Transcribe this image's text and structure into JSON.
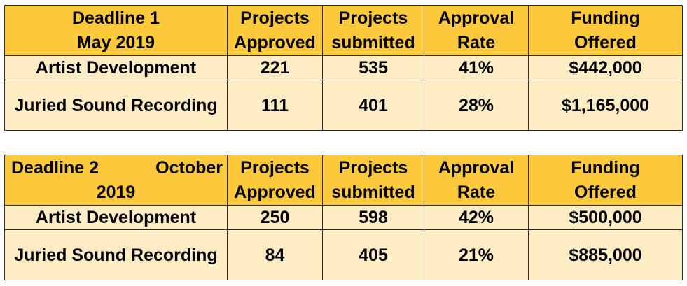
{
  "tables": [
    {
      "deadline": {
        "line1": "Deadline 1",
        "line2": "May 2019"
      },
      "columns": {
        "approved": {
          "line1": "Projects",
          "line2": "Approved"
        },
        "submitted": {
          "line1": "Projects",
          "line2": "submitted"
        },
        "rate": {
          "line1": "Approval",
          "line2": "Rate"
        },
        "funding": {
          "line1": "Funding",
          "line2": "Offered"
        }
      },
      "rows": [
        {
          "program": "Artist Development",
          "approved": "221",
          "submitted": "535",
          "rate": "41%",
          "funding": "$442,000"
        },
        {
          "program": "Juried Sound Recording",
          "approved": "111",
          "submitted": "401",
          "rate": "28%",
          "funding": "$1,165,000"
        }
      ]
    },
    {
      "deadline": {
        "part1": "Deadline 2",
        "part2": "October",
        "part3": "2019"
      },
      "columns": {
        "approved": {
          "line1": "Projects",
          "line2": "Approved"
        },
        "submitted": {
          "line1": "Projects",
          "line2": "submitted"
        },
        "rate": {
          "line1": "Approval",
          "line2": "Rate"
        },
        "funding": {
          "line1": "Funding",
          "line2": "Offered"
        }
      },
      "rows": [
        {
          "program": "Artist Development",
          "approved": "250",
          "submitted": "598",
          "rate": "42%",
          "funding": "$500,000"
        },
        {
          "program": "Juried Sound Recording",
          "approved": "84",
          "submitted": "405",
          "rate": "21%",
          "funding": "$885,000"
        }
      ]
    }
  ],
  "colors": {
    "header_fill": "#fcc93c",
    "row_fill": "#fdecc4",
    "border": "#2b2b2b"
  }
}
